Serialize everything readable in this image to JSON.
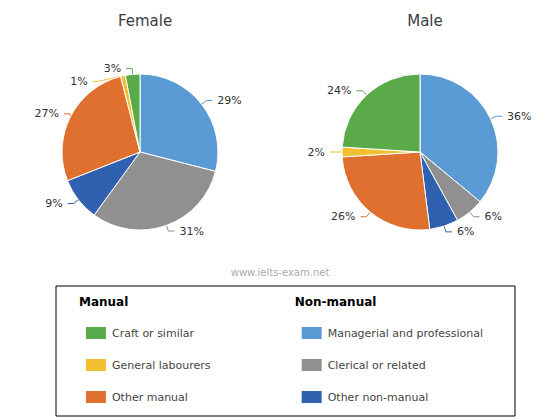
{
  "chart_data": {
    "type": "pie",
    "categories": [
      "Managerial and professional",
      "Clerical or related",
      "Other non-manual",
      "Other manual",
      "General labourers",
      "Craft or similar"
    ],
    "colors": [
      "#5b9bd5",
      "#909090",
      "#3060b0",
      "#e07030",
      "#f0c030",
      "#5aaa4a"
    ],
    "series": [
      {
        "name": "Female",
        "values": [
          29,
          31,
          9,
          27,
          1,
          3
        ],
        "value_labels": [
          "29%",
          "31%",
          "9%",
          "27%",
          "1%",
          "3%"
        ]
      },
      {
        "name": "Male",
        "values": [
          36,
          6,
          6,
          26,
          2,
          24
        ],
        "value_labels": [
          "36%",
          "6%",
          "6%",
          "26%",
          "2%",
          "24%"
        ]
      }
    ],
    "data_labels": true,
    "legend": "bottom",
    "annotations": [
      {
        "text": "www.ielts-exam.net"
      },
      {
        "text": "Manual",
        "categories": [
          "Craft or similar",
          "General labourers",
          "Other manual"
        ]
      },
      {
        "text": "Non-manual",
        "categories": [
          "Managerial and professional",
          "Clerical or related",
          "Other non-manual"
        ]
      }
    ]
  }
}
